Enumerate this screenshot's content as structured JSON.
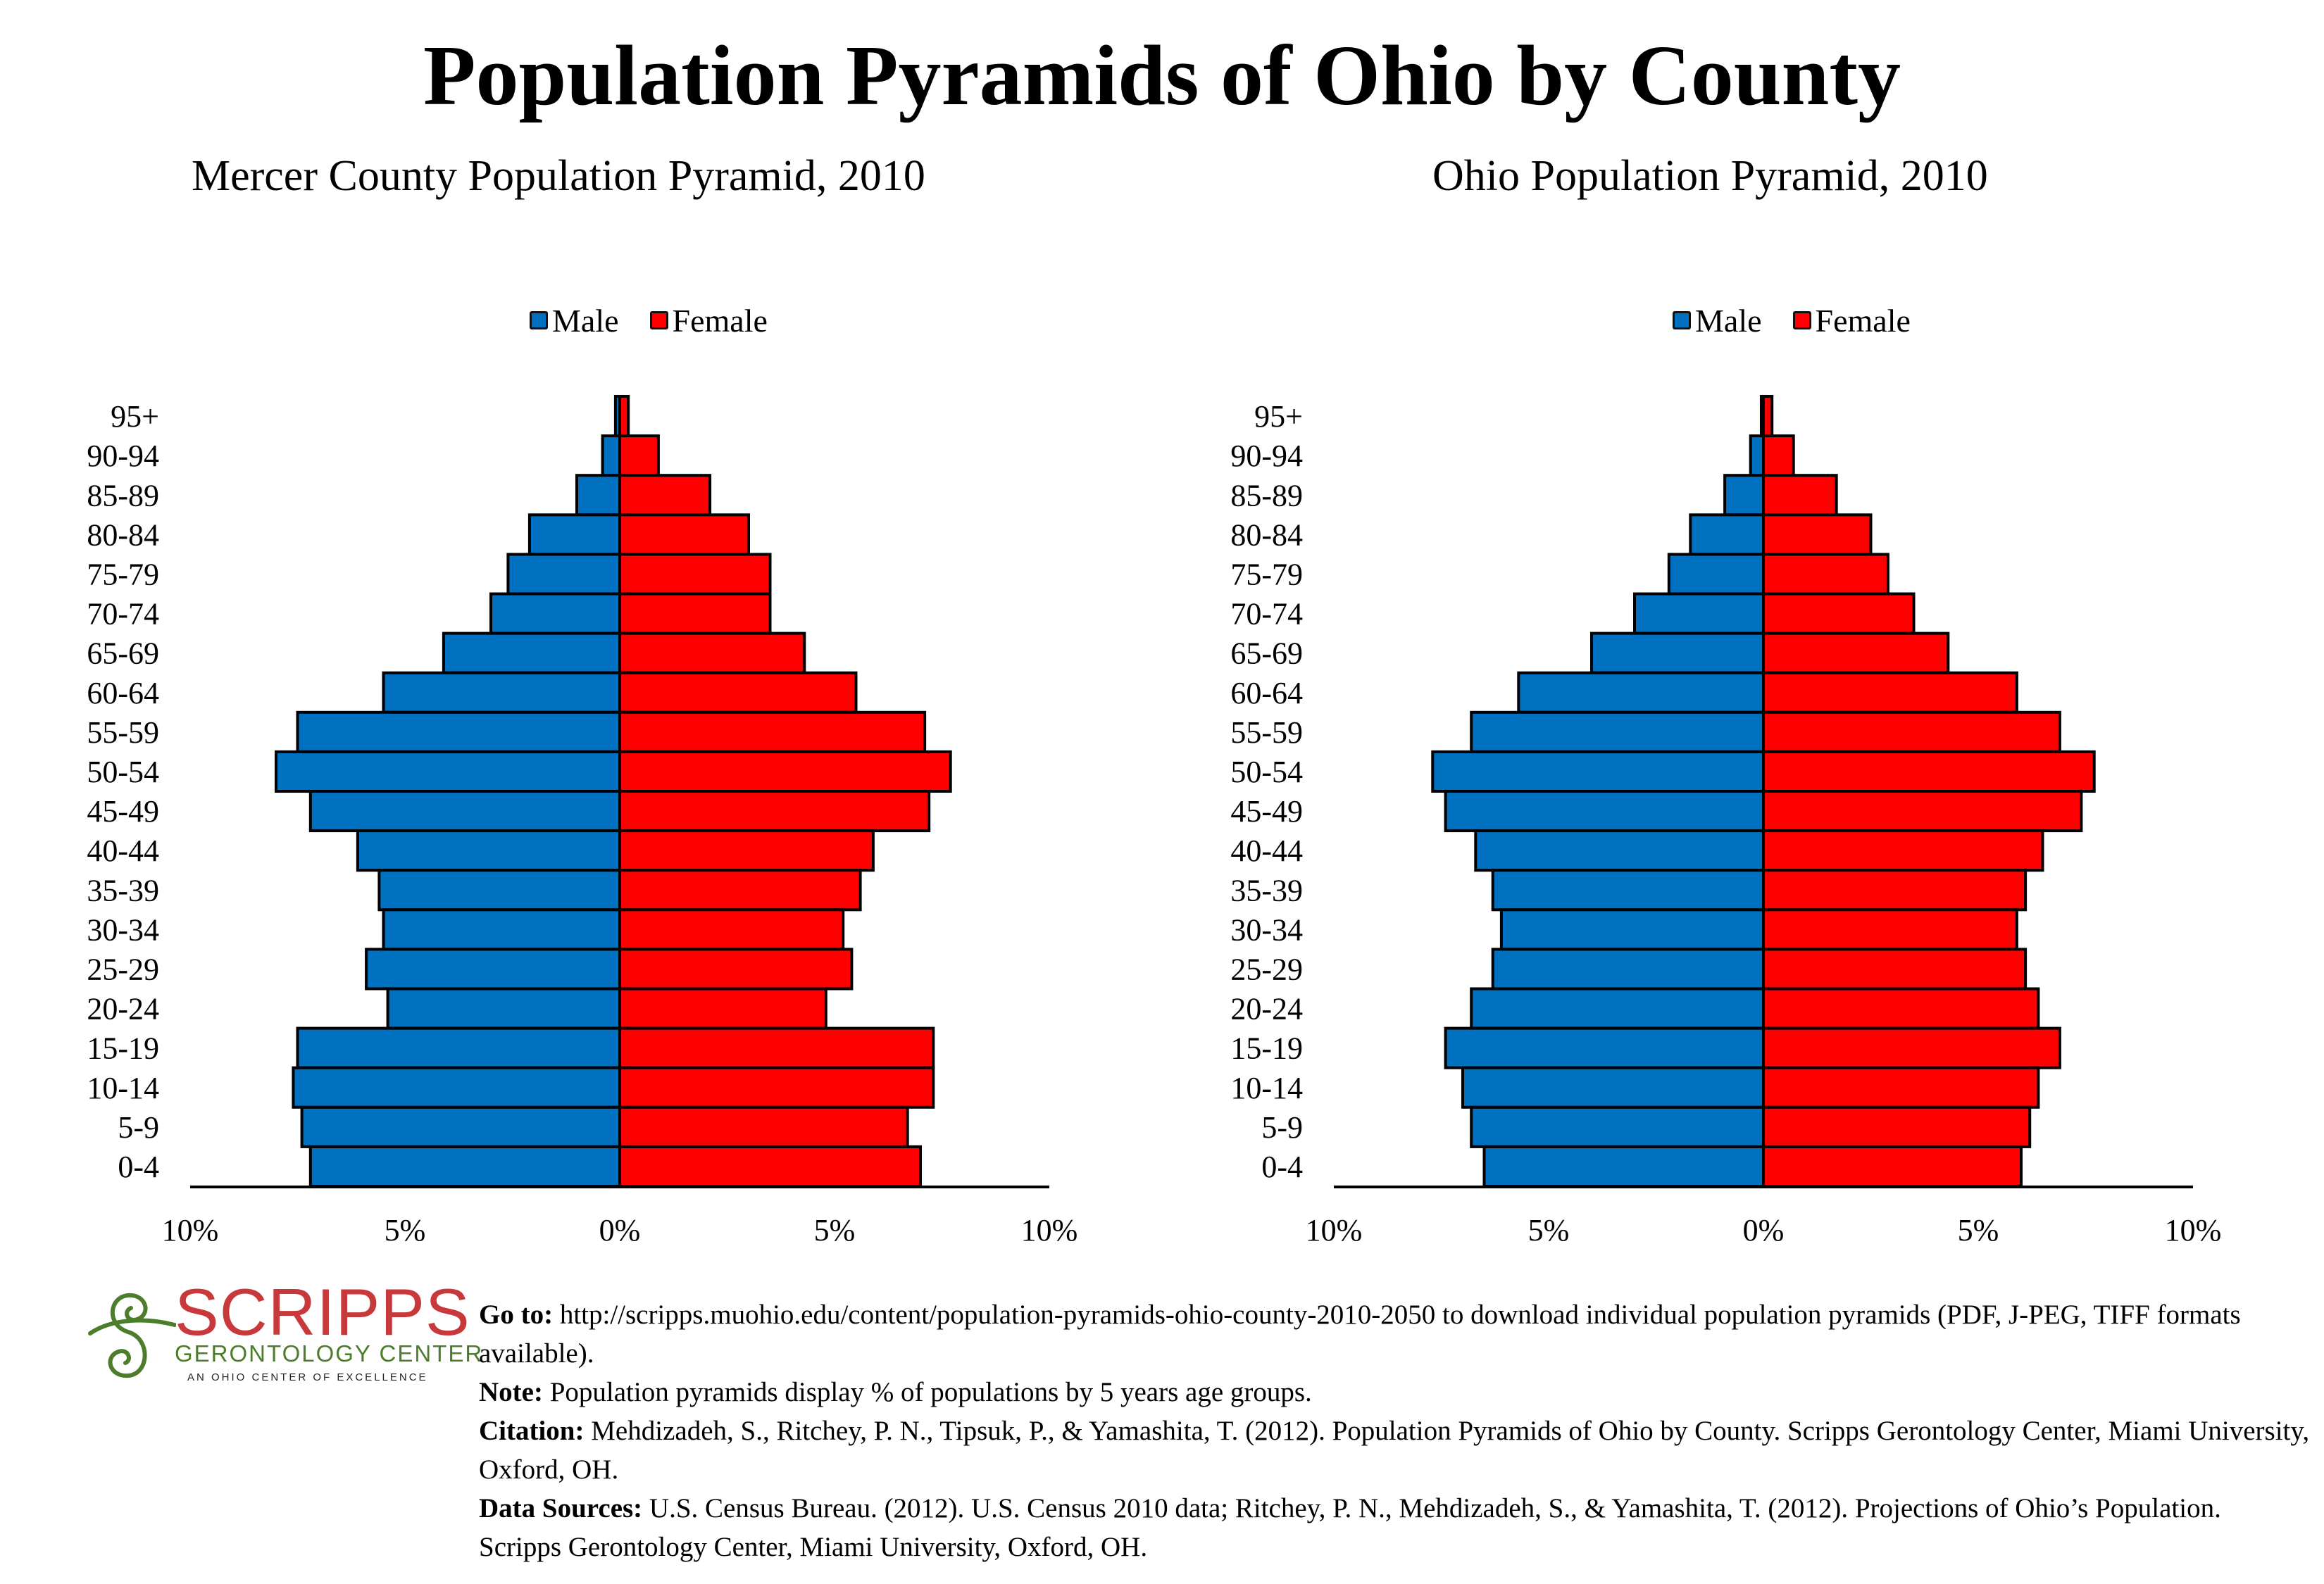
{
  "title": "Population Pyramids of Ohio by County",
  "legend": {
    "male_label": "Male",
    "female_label": "Female"
  },
  "colors": {
    "male": "#0070c0",
    "female": "#ff0000",
    "outline": "#000000"
  },
  "chart_data": [
    {
      "type": "bar",
      "subtype": "population-pyramid",
      "title": "Mercer County Population Pyramid, 2010",
      "categories": [
        "95+",
        "90-94",
        "85-89",
        "80-84",
        "75-79",
        "70-74",
        "65-69",
        "60-64",
        "55-59",
        "50-54",
        "45-49",
        "40-44",
        "35-39",
        "30-34",
        "25-29",
        "20-24",
        "15-19",
        "10-14",
        "5-9",
        "0-4"
      ],
      "series": [
        {
          "name": "Male",
          "values": [
            0.1,
            0.4,
            1.0,
            2.1,
            2.6,
            3.0,
            4.1,
            5.5,
            7.5,
            8.0,
            7.2,
            6.1,
            5.6,
            5.5,
            5.9,
            5.4,
            7.5,
            7.6,
            7.4,
            7.2
          ]
        },
        {
          "name": "Female",
          "values": [
            0.2,
            0.9,
            2.1,
            3.0,
            3.5,
            3.5,
            4.3,
            5.5,
            7.1,
            7.7,
            7.2,
            5.9,
            5.6,
            5.2,
            5.4,
            4.8,
            7.3,
            7.3,
            6.7,
            7.0
          ]
        }
      ],
      "xlim": [
        -10,
        10
      ],
      "xticks": [
        "10%",
        "5%",
        "0%",
        "5%",
        "10%"
      ],
      "xlabel": "",
      "ylabel": "",
      "legend": "top-center",
      "grid": false
    },
    {
      "type": "bar",
      "subtype": "population-pyramid",
      "title": "Ohio Population Pyramid, 2010",
      "categories": [
        "95+",
        "90-94",
        "85-89",
        "80-84",
        "75-79",
        "70-74",
        "65-69",
        "60-64",
        "55-59",
        "50-54",
        "45-49",
        "40-44",
        "35-39",
        "30-34",
        "25-29",
        "20-24",
        "15-19",
        "10-14",
        "5-9",
        "0-4"
      ],
      "series": [
        {
          "name": "Male",
          "values": [
            0.05,
            0.3,
            0.9,
            1.7,
            2.2,
            3.0,
            4.0,
            5.7,
            6.8,
            7.7,
            7.4,
            6.7,
            6.3,
            6.1,
            6.3,
            6.8,
            7.4,
            7.0,
            6.8,
            6.5
          ]
        },
        {
          "name": "Female",
          "values": [
            0.2,
            0.7,
            1.7,
            2.5,
            2.9,
            3.5,
            4.3,
            5.9,
            6.9,
            7.7,
            7.4,
            6.5,
            6.1,
            5.9,
            6.1,
            6.4,
            6.9,
            6.4,
            6.2,
            6.0
          ]
        }
      ],
      "xlim": [
        -10,
        10
      ],
      "xticks": [
        "10%",
        "5%",
        "0%",
        "5%",
        "10%"
      ],
      "xlabel": "",
      "ylabel": "",
      "legend": "top-center",
      "grid": false
    }
  ],
  "logo": {
    "name": "SCRIPPS",
    "subtitle": "GERONTOLOGY  CENTER",
    "tagline": "AN OHIO CENTER OF EXCELLENCE",
    "icon": "swirl-logo-icon"
  },
  "footer": {
    "goto_label": "Go to:",
    "goto_text": "http://scripps.muohio.edu/content/population-pyramids-ohio-county-2010-2050 to download individual population pyramids (PDF, J-PEG, TIFF formats available).",
    "note_label": "Note:",
    "note_text": "Population pyramids display % of populations by 5 years age groups.",
    "citation_label": "Citation:",
    "citation_text": "Mehdizadeh, S., Ritchey, P. N., Tipsuk, P., & Yamashita, T. (2012). Population Pyramids of Ohio by County. Scripps Gerontology Center, Miami University, Oxford, OH.",
    "sources_label": "Data Sources:",
    "sources_text": "U.S. Census Bureau. (2012). U.S. Census 2010 data; Ritchey, P. N., Mehdizadeh, S., & Yamashita, T. (2012). Projections of Ohio’s Population. Scripps Gerontology Center, Miami University, Oxford, OH."
  }
}
